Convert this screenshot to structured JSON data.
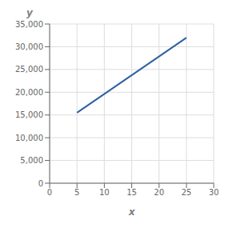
{
  "chart_data": {
    "type": "line",
    "x": [
      5,
      25
    ],
    "values": [
      15500,
      32000
    ],
    "color": "#2e5fa3",
    "xlim": [
      0,
      30
    ],
    "ylim": [
      0,
      35000
    ],
    "xticks": [
      0,
      5,
      10,
      15,
      20,
      25,
      30
    ],
    "yticks": [
      0,
      {
        "value": 5000,
        "label": "5,000"
      },
      {
        "value": 10000,
        "label": "10,000"
      },
      {
        "value": 15000,
        "label": "15,000"
      },
      {
        "value": 20000,
        "label": "20,000"
      },
      {
        "value": 25000,
        "label": "25,000"
      },
      {
        "value": 30000,
        "label": "30,000"
      },
      {
        "value": 35000,
        "label": "35,000"
      }
    ],
    "xlabel": "x",
    "ylabel": "y",
    "grid": true
  }
}
